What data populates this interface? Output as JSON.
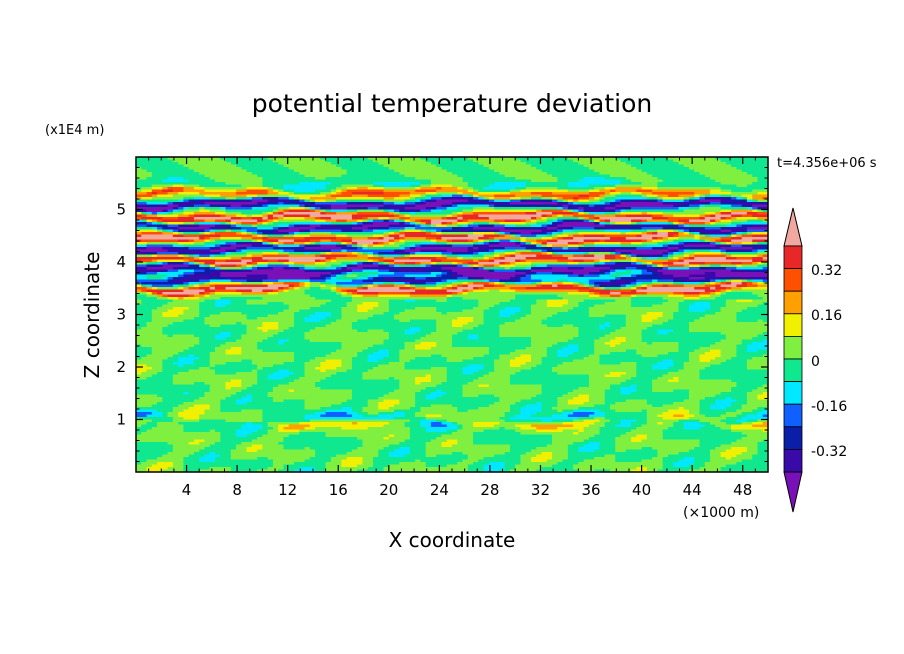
{
  "chart_data": {
    "type": "heatmap",
    "title": "potential temperature deviation",
    "xlabel": "X coordinate",
    "ylabel": "Z coordinate",
    "x_unit": "(×1000 m)",
    "y_unit": "(x1E4 m)",
    "time_label": "t=4.356e+06 s",
    "xlim": [
      0,
      50
    ],
    "ylim": [
      0,
      6
    ],
    "x_ticks": [
      "4",
      "8",
      "12",
      "16",
      "20",
      "24",
      "28",
      "32",
      "36",
      "40",
      "44",
      "48"
    ],
    "y_ticks": [
      "1",
      "2",
      "3",
      "4",
      "5"
    ],
    "colorbar": {
      "levels": [
        -0.48,
        -0.4,
        -0.32,
        -0.24,
        -0.16,
        -0.08,
        0,
        0.08,
        0.16,
        0.24,
        0.32,
        0.4,
        0.48
      ],
      "colors": [
        "#7a10b8",
        "#3a0aa8",
        "#0a1ea8",
        "#1060ff",
        "#00e8ff",
        "#10e890",
        "#80f040",
        "#f0f000",
        "#ffa000",
        "#ff5000",
        "#e82828",
        "#f0a8a0"
      ],
      "tick_labels": [
        "0.32",
        "0.16",
        "0",
        "-0.16",
        "-0.32"
      ]
    },
    "bands": [
      {
        "z": 0.95,
        "v": 0.16
      },
      {
        "z": 1.0,
        "v": -0.16
      },
      {
        "z": 3.5,
        "v": 0.45
      },
      {
        "z": 3.65,
        "v": -0.35
      },
      {
        "z": 3.85,
        "v": -0.45
      },
      {
        "z": 4.05,
        "v": 0.45
      },
      {
        "z": 4.25,
        "v": -0.45
      },
      {
        "z": 4.45,
        "v": 0.45
      },
      {
        "z": 4.65,
        "v": -0.45
      },
      {
        "z": 4.85,
        "v": 0.45
      },
      {
        "z": 5.1,
        "v": -0.45
      },
      {
        "z": 5.3,
        "v": 0.3
      },
      {
        "z": 5.45,
        "v": -0.1
      }
    ]
  }
}
